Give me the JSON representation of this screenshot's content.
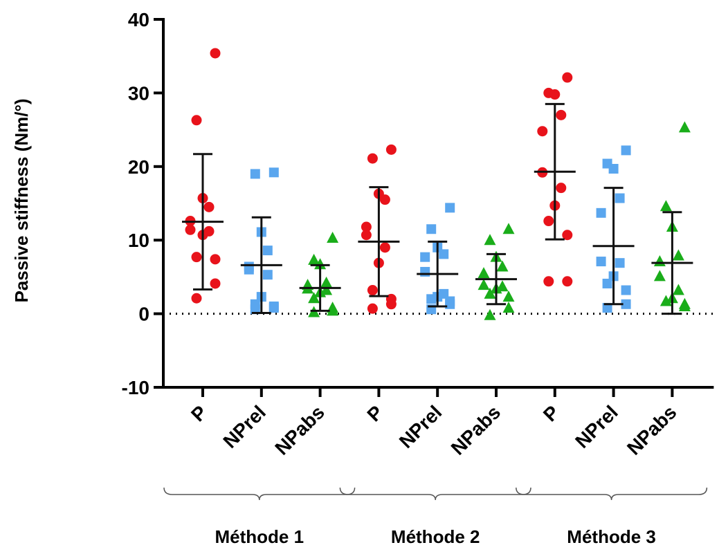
{
  "chart_data": {
    "type": "dot",
    "ylabel": "Passive stiffness (Nm/°)",
    "ylim": [
      -10,
      40
    ],
    "yticks": [
      -10,
      0,
      10,
      20,
      30,
      40
    ],
    "hline": 0,
    "categories": [
      "P",
      "NPrel",
      "NPabs",
      "P",
      "NPrel",
      "NPabs",
      "P",
      "NPrel",
      "NPabs"
    ],
    "groups": [
      "Méthode 1",
      "Méthode 2",
      "Méthode 3"
    ],
    "columns": [
      {
        "color": "#e8131b",
        "marker": "circle",
        "mean": 12.5,
        "sd": 9.2,
        "values": [
          35.4,
          26.3,
          15.7,
          14.5,
          12.6,
          11.4,
          11.2,
          10.7,
          7.7,
          7.4,
          4.1,
          2.1
        ]
      },
      {
        "color": "#5aa6ee",
        "marker": "square",
        "mean": 6.6,
        "sd": 6.5,
        "values": [
          19.2,
          19.0,
          11.1,
          8.6,
          6.4,
          6.0,
          5.3,
          2.3,
          1.3,
          1.0,
          0.8,
          0.6
        ]
      },
      {
        "color": "#1aad1a",
        "marker": "triangle",
        "mean": 3.5,
        "sd": 3.1,
        "values": [
          10.3,
          7.3,
          6.7,
          4.2,
          3.9,
          3.4,
          3.2,
          2.9,
          2.1,
          0.8,
          0.4,
          0.2
        ]
      },
      {
        "color": "#e8131b",
        "marker": "circle",
        "mean": 9.8,
        "sd": 7.4,
        "values": [
          22.3,
          21.1,
          16.3,
          15.5,
          11.8,
          10.7,
          9.0,
          6.9,
          3.2,
          2.0,
          1.3,
          0.7
        ]
      },
      {
        "color": "#5aa6ee",
        "marker": "square",
        "mean": 5.4,
        "sd": 4.4,
        "values": [
          14.4,
          11.5,
          9.0,
          8.1,
          7.7,
          5.7,
          2.7,
          2.3,
          2.0,
          1.7,
          1.3,
          0.6
        ]
      },
      {
        "color": "#1aad1a",
        "marker": "triangle",
        "mean": 4.7,
        "sd": 3.4,
        "values": [
          11.5,
          10.0,
          7.7,
          6.4,
          5.5,
          3.9,
          3.7,
          3.4,
          2.7,
          2.3,
          0.8,
          -0.2
        ]
      },
      {
        "color": "#e8131b",
        "marker": "circle",
        "mean": 19.3,
        "sd": 9.2,
        "values": [
          32.1,
          30.0,
          29.8,
          27.0,
          24.8,
          19.2,
          17.1,
          14.7,
          12.6,
          10.7,
          4.4,
          4.4
        ]
      },
      {
        "color": "#5aa6ee",
        "marker": "square",
        "mean": 9.2,
        "sd": 7.9,
        "values": [
          22.2,
          20.4,
          19.7,
          15.7,
          13.7,
          7.1,
          6.9,
          5.1,
          4.1,
          3.2,
          1.3,
          0.8
        ]
      },
      {
        "color": "#1aad1a",
        "marker": "triangle",
        "mean": 6.9,
        "sd": 6.9,
        "values": [
          25.3,
          14.6,
          11.8,
          7.9,
          7.1,
          5.1,
          3.2,
          2.1,
          1.7,
          1.3,
          1.0
        ]
      }
    ]
  }
}
